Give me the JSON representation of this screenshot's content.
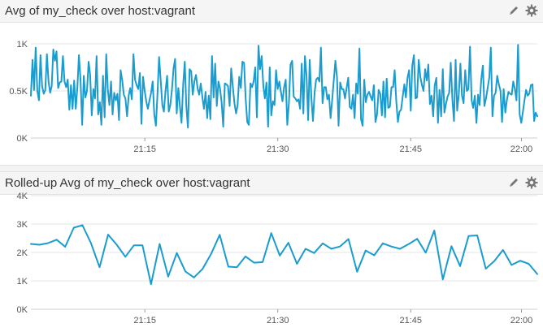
{
  "panels": [
    {
      "title": "Avg of my_check over host:vagrant",
      "edit_icon": "pencil-icon",
      "settings_icon": "gear-icon"
    },
    {
      "title": "Rolled-up Avg of my_check over host:vagrant",
      "edit_icon": "pencil-icon",
      "settings_icon": "gear-icon"
    }
  ],
  "colors": {
    "line": "#1a9ccf",
    "grid": "#e6e6e6",
    "header_bg": "#f5f5f5"
  },
  "chart_data": [
    {
      "type": "line",
      "title": "Avg of my_check over host:vagrant",
      "ylim": [
        0,
        1000
      ],
      "y_ticks": [
        0,
        500,
        1000
      ],
      "y_tick_labels": [
        "0K",
        "0.5K",
        "1K"
      ],
      "xlim": [
        0,
        160
      ],
      "x_ticks": [
        36,
        78,
        120,
        155
      ],
      "x_tick_labels": [
        "21:15",
        "21:30",
        "21:45",
        "22:00"
      ],
      "series": [
        {
          "values": [
            450,
            830,
            510,
            960,
            500,
            400,
            880,
            550,
            470,
            510,
            890,
            600,
            480,
            550,
            940,
            820,
            920,
            530,
            590,
            600,
            870,
            600,
            540,
            620,
            300,
            560,
            310,
            610,
            310,
            540,
            880,
            610,
            140,
            660,
            430,
            500,
            810,
            670,
            240,
            520,
            420,
            870,
            250,
            380,
            140,
            660,
            220,
            890,
            520,
            350,
            600,
            250,
            480,
            400,
            470,
            190,
            720,
            610,
            460,
            420,
            230,
            450,
            530,
            410,
            890,
            620,
            560,
            520,
            690,
            150,
            650,
            500,
            390,
            310,
            400,
            480,
            600,
            250,
            130,
            480,
            860,
            610,
            350,
            280,
            500,
            660,
            280,
            350,
            510,
            740,
            840,
            260,
            530,
            330,
            160,
            560,
            810,
            340,
            110,
            730,
            710,
            460,
            600,
            670,
            530,
            460,
            580,
            430,
            310,
            490,
            210,
            450,
            200,
            870,
            430,
            790,
            340,
            600,
            530,
            380,
            120,
            580,
            570,
            550,
            340,
            740,
            550,
            370,
            260,
            350,
            650,
            530,
            810,
            800,
            420,
            170,
            140,
            580,
            540,
            600,
            750,
            220,
            980,
            730,
            870,
            560,
            420,
            590,
            120,
            750,
            240,
            390,
            350,
            720,
            520,
            600,
            490,
            390,
            540,
            620,
            140,
            370,
            780,
            820,
            440,
            420,
            390,
            410,
            310,
            790,
            260,
            870,
            660,
            190,
            830,
            440,
            180,
            480,
            620,
            640,
            600,
            960,
            370,
            540,
            540,
            410,
            460,
            210,
            400,
            610,
            820,
            640,
            130,
            590,
            520,
            520,
            420,
            530,
            640,
            330,
            310,
            460,
            210,
            580,
            470,
            950,
            200,
            130,
            620,
            380,
            460,
            490,
            440,
            400,
            560,
            170,
            250,
            510,
            470,
            240,
            600,
            220,
            630,
            320,
            330,
            540,
            540,
            720,
            390,
            170,
            280,
            300,
            440,
            570,
            430,
            640,
            720,
            290,
            770,
            880,
            420,
            430,
            830,
            650,
            560,
            500,
            730,
            610,
            780,
            360,
            450,
            230,
            560,
            640,
            160,
            510,
            230,
            730,
            270,
            360,
            440,
            480,
            800,
            410,
            180,
            830,
            290,
            460,
            790,
            450,
            370,
            720,
            500,
            520,
            970,
            400,
            320,
            450,
            160,
            460,
            350,
            620,
            770,
            340,
            420,
            530,
            640,
            960,
            230,
            450,
            480,
            660,
            570,
            500,
            170,
            520,
            270,
            400,
            490,
            470,
            460,
            600,
            520,
            400,
            990,
            250,
            160,
            280,
            400,
            510,
            450,
            470,
            560,
            570,
            180,
            270,
            230
          ]
        }
      ]
    },
    {
      "type": "line",
      "title": "Rolled-up Avg of my_check over host:vagrant",
      "ylim": [
        0,
        4000
      ],
      "y_ticks": [
        0,
        1000,
        2000,
        3000,
        4000
      ],
      "y_tick_labels": [
        "0K",
        "1K",
        "2K",
        "3K",
        "4K"
      ],
      "xlim": [
        0,
        160
      ],
      "x_ticks": [
        36,
        78,
        120,
        155
      ],
      "x_tick_labels": [
        "21:15",
        "21:30",
        "21:45",
        "22:00"
      ],
      "series": [
        {
          "values": [
            2300,
            2270,
            2330,
            2450,
            2200,
            2870,
            2960,
            2330,
            1480,
            2630,
            2270,
            1850,
            2250,
            2250,
            880,
            2300,
            1150,
            1980,
            1330,
            1120,
            1420,
            1950,
            2620,
            1500,
            1480,
            1860,
            1640,
            1660,
            2680,
            1890,
            2340,
            1600,
            2130,
            1980,
            2320,
            2130,
            2210,
            2470,
            1320,
            2070,
            1900,
            2320,
            2210,
            2130,
            2290,
            2480,
            1990,
            2770,
            1050,
            2220,
            1520,
            2580,
            2600,
            1430,
            1700,
            2090,
            1560,
            1710,
            1600,
            1240
          ]
        }
      ]
    }
  ]
}
